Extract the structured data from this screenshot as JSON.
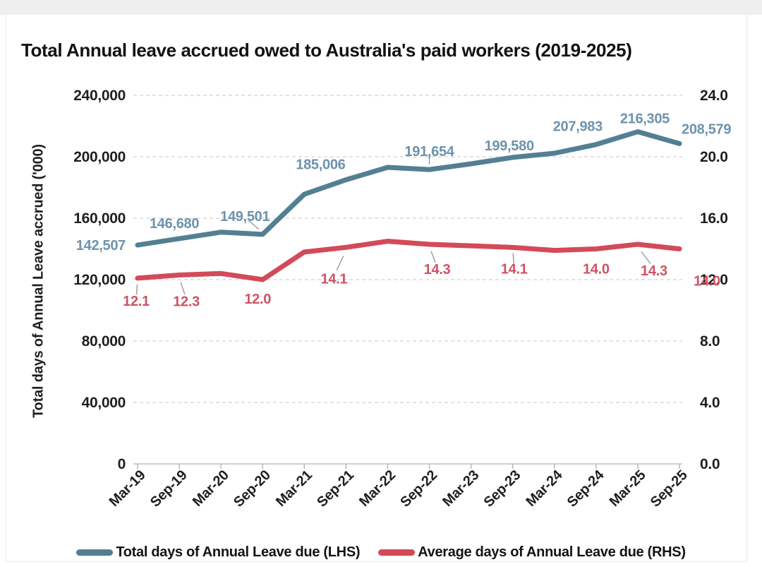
{
  "page": {
    "title": "Total Annual leave accrued owed to Australia's paid workers (2019-2025)"
  },
  "chart_data": {
    "type": "line",
    "title": "Total Annual leave accrued owed to Australia's paid workers (2019-2025)",
    "categories": [
      "Mar-19",
      "Sep-19",
      "Mar-20",
      "Sep-20",
      "Mar-21",
      "Sep-21",
      "Mar-22",
      "Sep-22",
      "Mar-23",
      "Sep-23",
      "Mar-24",
      "Sep-24",
      "Mar-25",
      "Sep-25"
    ],
    "left_axis": {
      "label": "Total days of Annual Leave accrued ('000)",
      "min": 0,
      "max": 240000,
      "step": 40000,
      "tick_labels": [
        "240,000",
        "200,000",
        "160,000",
        "120,000",
        "80,000",
        "40,000",
        "0"
      ]
    },
    "right_axis": {
      "min": 0,
      "max": 24,
      "step": 4,
      "tick_labels": [
        "24.0",
        "20.0",
        "16.0",
        "12.0",
        "8.0",
        "4.0",
        "0.0"
      ]
    },
    "grid": {
      "horizontal": true,
      "style": "dashed",
      "color": "#dadada"
    },
    "series": [
      {
        "name": "Total days of Annual Leave due (LHS)",
        "axis": "left",
        "color": "#537f93",
        "label_color": "#6d93ab",
        "values": [
          142507,
          146680,
          150900,
          149501,
          175600,
          185006,
          193100,
          191654,
          195400,
          199580,
          202300,
          207983,
          216305,
          208579
        ],
        "point_labels": [
          "142,507",
          "146,680",
          "",
          "149,501",
          "",
          "185,006",
          "",
          "191,654",
          "",
          "199,580",
          "",
          "207,983",
          "216,305",
          "208,579"
        ]
      },
      {
        "name": "Average days of Annual Leave due (RHS)",
        "axis": "right",
        "color": "#d34a58",
        "label_color": "#d05263",
        "values": [
          12.1,
          12.3,
          12.4,
          12.0,
          13.8,
          14.1,
          14.5,
          14.3,
          14.2,
          14.1,
          13.9,
          14.0,
          14.3,
          14.0
        ],
        "point_labels": [
          "12.1",
          "12.3",
          "",
          "12.0",
          "",
          "14.1",
          "",
          "14.3",
          "",
          "14.1",
          "",
          "14.0",
          "14.3",
          "14.0"
        ]
      }
    ],
    "legend": [
      {
        "label": "Total days of Annual Leave due (LHS)",
        "color": "#537f93"
      },
      {
        "label": "Average days of Annual Leave due (RHS)",
        "color": "#d34a58"
      }
    ],
    "legend_position": "bottom"
  }
}
